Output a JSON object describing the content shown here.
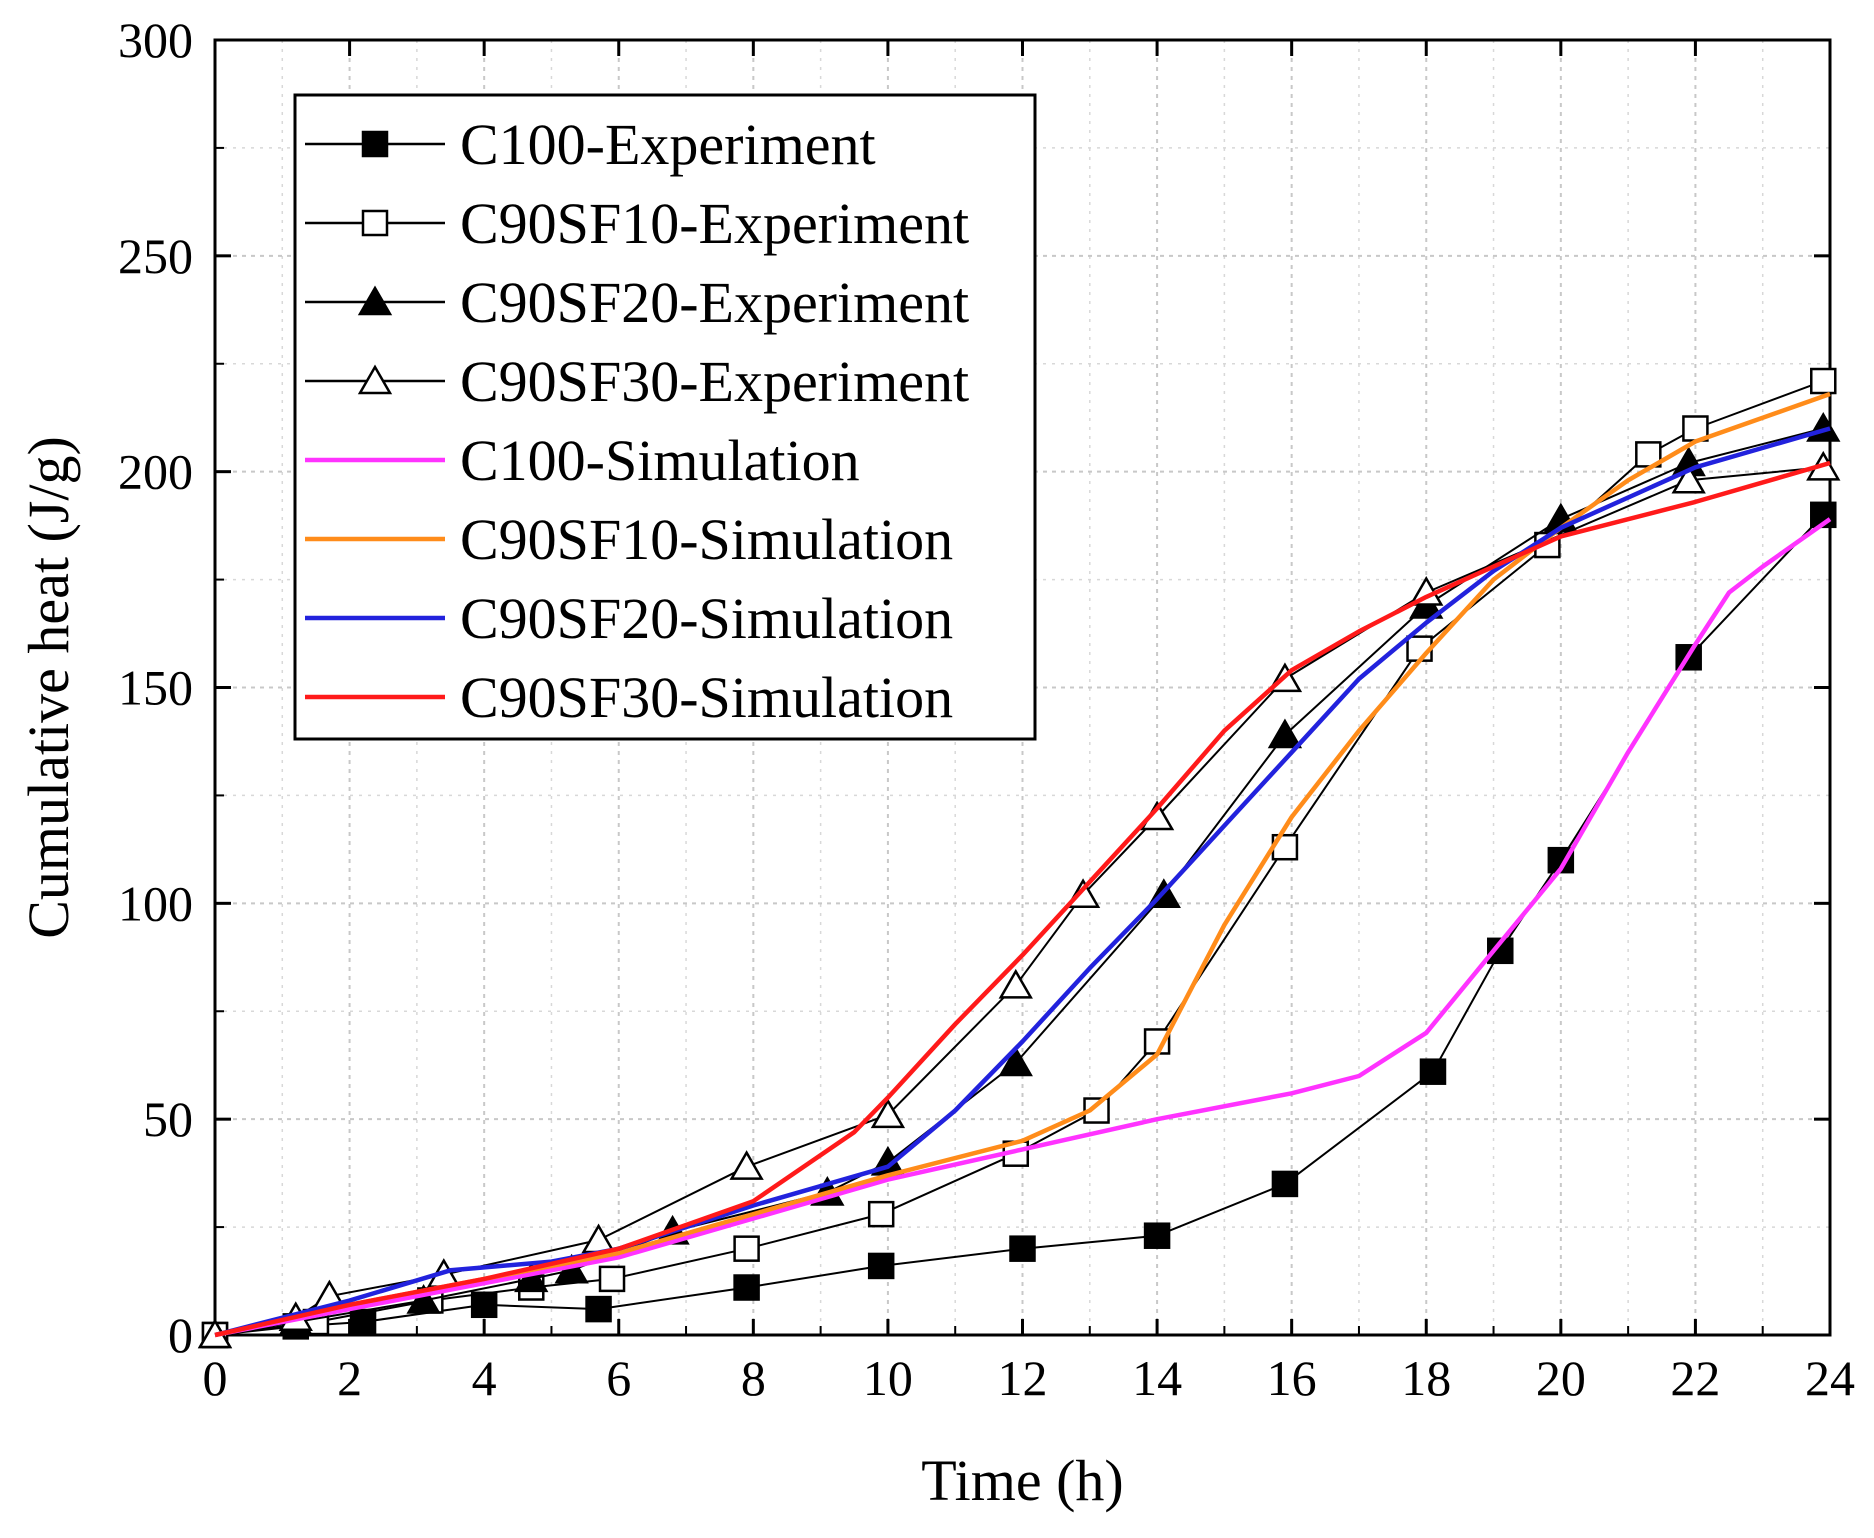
{
  "chart_data": {
    "type": "line",
    "title": "",
    "xlabel": "Time (h)",
    "ylabel": "Cumulative heat (J/g)",
    "xlim": [
      0,
      24
    ],
    "ylim": [
      0,
      300
    ],
    "x_ticks": [
      0,
      2,
      4,
      6,
      8,
      10,
      12,
      14,
      16,
      18,
      20,
      22,
      24
    ],
    "y_ticks": [
      0,
      50,
      100,
      150,
      200,
      250,
      300
    ],
    "grid": true,
    "legend_position": "top-left",
    "series": [
      {
        "name": "C100-Experiment",
        "kind": "experiment",
        "marker": "square-filled",
        "color": "#000000",
        "x": [
          0,
          1.2,
          2.2,
          4.0,
          5.7,
          7.9,
          9.9,
          12.0,
          14.0,
          15.9,
          18.1,
          19.1,
          20.0,
          21.9,
          23.9
        ],
        "y": [
          0,
          2,
          3,
          7,
          6,
          11,
          16,
          20,
          23,
          35,
          61,
          89,
          110,
          157,
          190
        ]
      },
      {
        "name": "C90SF10-Experiment",
        "kind": "experiment",
        "marker": "square-open",
        "color": "#000000",
        "x": [
          0,
          1.5,
          3.2,
          4.7,
          5.9,
          7.9,
          9.9,
          11.9,
          13.1,
          14.0,
          15.9,
          17.9,
          19.8,
          21.3,
          22.0,
          23.9
        ],
        "y": [
          0,
          3,
          8,
          11,
          13,
          20,
          28,
          42,
          52,
          68,
          113,
          159,
          183,
          204,
          210,
          221
        ]
      },
      {
        "name": "C90SF20-Experiment",
        "kind": "experiment",
        "marker": "triangle-filled",
        "color": "#000000",
        "x": [
          0,
          1.2,
          3.1,
          4.7,
          5.3,
          6.8,
          9.1,
          10.0,
          11.9,
          14.1,
          15.9,
          18.0,
          20.0,
          21.9,
          23.9
        ],
        "y": [
          0,
          3,
          8,
          13,
          15,
          24,
          33,
          40,
          63,
          102,
          139,
          169,
          189,
          202,
          210
        ]
      },
      {
        "name": "C90SF30-Experiment",
        "kind": "experiment",
        "marker": "triangle-open",
        "color": "#000000",
        "x": [
          0,
          1.2,
          1.7,
          3.4,
          5.7,
          7.9,
          10.0,
          11.9,
          12.9,
          14.0,
          15.9,
          18.0,
          21.9,
          23.9
        ],
        "y": [
          0,
          4,
          9,
          14,
          22,
          39,
          51,
          81,
          102,
          120,
          152,
          172,
          198,
          201
        ]
      },
      {
        "name": "C100-Simulation",
        "kind": "simulation",
        "color": "#ff33ff",
        "x": [
          0,
          2,
          4,
          6,
          8,
          10,
          12,
          14,
          16,
          17,
          18,
          19,
          20,
          21,
          22,
          22.5,
          23,
          24
        ],
        "y": [
          0,
          6,
          12,
          18,
          27,
          36,
          43,
          50,
          56,
          60,
          70,
          89,
          108,
          135,
          160,
          172,
          178,
          189
        ]
      },
      {
        "name": "C90SF10-Simulation",
        "kind": "simulation",
        "color": "#ff8c1a",
        "x": [
          0,
          2,
          4,
          6,
          8,
          10,
          12,
          13,
          14,
          15,
          16,
          17,
          18,
          19,
          20,
          21,
          22,
          24
        ],
        "y": [
          0,
          7,
          13,
          19,
          28,
          37,
          45,
          52,
          65,
          95,
          120,
          140,
          158,
          175,
          187,
          198,
          207,
          218
        ]
      },
      {
        "name": "C90SF20-Simulation",
        "kind": "simulation",
        "color": "#2222dd",
        "x": [
          0,
          2,
          3.5,
          5,
          6,
          8,
          10,
          11,
          12,
          13,
          14,
          15,
          16,
          17,
          18,
          19,
          20,
          22,
          24
        ],
        "y": [
          0,
          8,
          15,
          17,
          20,
          30,
          39,
          52,
          68,
          85,
          101,
          118,
          135,
          152,
          165,
          177,
          187,
          201,
          210
        ]
      },
      {
        "name": "C90SF30-Simulation",
        "kind": "simulation",
        "color": "#ff1a1a",
        "x": [
          0,
          2,
          4,
          6,
          8,
          9.5,
          10,
          11,
          12,
          13,
          14,
          15,
          16,
          17,
          18,
          19,
          20,
          22,
          24
        ],
        "y": [
          0,
          7,
          13,
          20,
          31,
          47,
          55,
          72,
          88,
          105,
          122,
          140,
          154,
          163,
          171,
          178,
          185,
          193,
          202
        ]
      }
    ]
  }
}
